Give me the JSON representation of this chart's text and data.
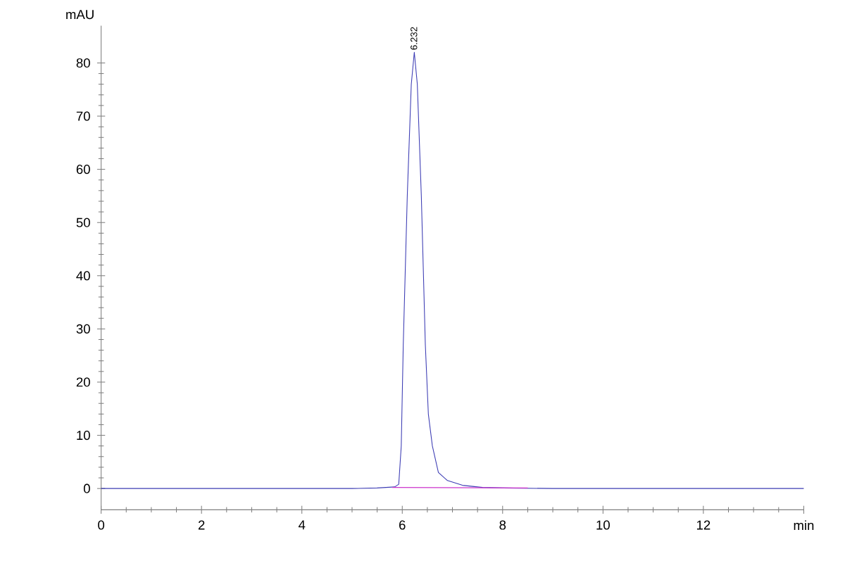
{
  "chart_data": {
    "type": "line",
    "ylabel": "mAU",
    "xlim": [
      0,
      14
    ],
    "xticks": [
      0,
      2,
      4,
      6,
      8,
      10,
      12,
      {
        "value": 14,
        "label": "min"
      }
    ],
    "ylim": [
      -4,
      87
    ],
    "yticks": [
      0,
      10,
      20,
      30,
      40,
      50,
      60,
      70,
      80
    ],
    "grid": false,
    "marker": "none",
    "line_style": "solid",
    "annotations": [
      {
        "text": "6.232",
        "x": 6.232,
        "y": 82
      }
    ],
    "series": [
      {
        "color": "#3c3cb4",
        "x": [
          0,
          2,
          4,
          5,
          5.5,
          5.85,
          5.93,
          5.98,
          6.02,
          6.1,
          6.18,
          6.24,
          6.3,
          6.38,
          6.46,
          6.52,
          6.6,
          6.72,
          6.9,
          7.2,
          7.6,
          8,
          9,
          10,
          11,
          12,
          13,
          14
        ],
        "values": [
          0,
          0,
          0,
          0,
          0.1,
          0.3,
          0.8,
          8,
          27,
          55,
          76,
          82,
          76,
          55,
          27,
          14,
          8,
          3,
          1.5,
          0.6,
          0.2,
          0.1,
          0,
          0,
          0,
          0,
          0,
          0
        ]
      },
      {
        "color": "#cc33cc",
        "x": [
          5.8,
          8.5
        ],
        "values": [
          0.2,
          0.1
        ]
      }
    ]
  }
}
